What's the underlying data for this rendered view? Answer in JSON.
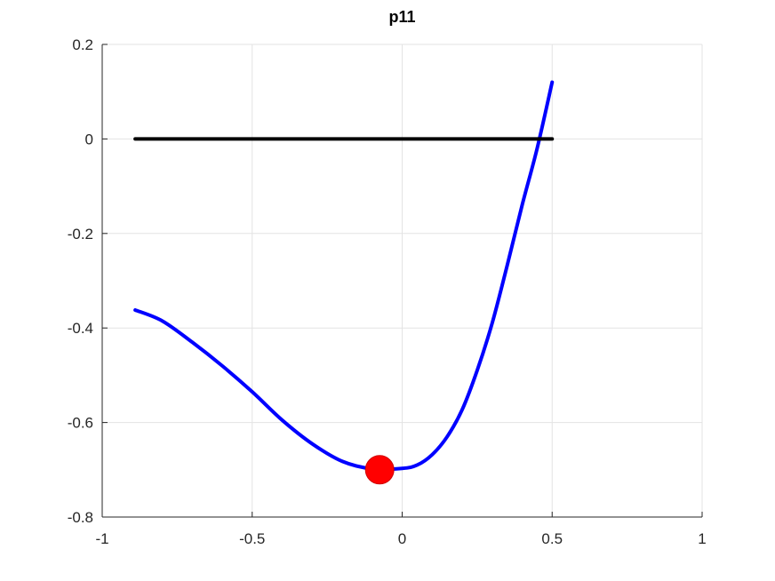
{
  "chart_data": {
    "type": "line",
    "title": "p11",
    "xlabel": "",
    "ylabel": "",
    "xlim": [
      -1,
      1
    ],
    "ylim": [
      -0.8,
      0.2
    ],
    "x_ticks": [
      "-1",
      "-0.5",
      "0",
      "0.5",
      "1"
    ],
    "y_ticks": [
      "-0.8",
      "-0.6",
      "-0.4",
      "-0.2",
      "0",
      "0.2"
    ],
    "x_tick_values": [
      -1,
      -0.5,
      0,
      0.5,
      1
    ],
    "y_tick_values": [
      -0.8,
      -0.6,
      -0.4,
      -0.2,
      0,
      0.2
    ],
    "grid": true,
    "series": [
      {
        "color": "#0000ff",
        "x": [
          -0.89,
          -0.8,
          -0.7,
          -0.6,
          -0.5,
          -0.4,
          -0.3,
          -0.2,
          -0.1,
          0.0,
          0.05,
          0.1,
          0.15,
          0.2,
          0.25,
          0.3,
          0.35,
          0.4,
          0.45,
          0.5
        ],
        "y": [
          -0.362,
          -0.385,
          -0.43,
          -0.48,
          -0.535,
          -0.595,
          -0.645,
          -0.682,
          -0.698,
          -0.697,
          -0.69,
          -0.668,
          -0.63,
          -0.573,
          -0.49,
          -0.39,
          -0.268,
          -0.14,
          -0.02,
          0.12
        ]
      },
      {
        "color": "#000000",
        "x": [
          -0.89,
          0.5
        ],
        "y": [
          0,
          0
        ]
      }
    ],
    "markers": [
      {
        "color": "#ff0000",
        "x": -0.075,
        "y": -0.7
      }
    ]
  }
}
